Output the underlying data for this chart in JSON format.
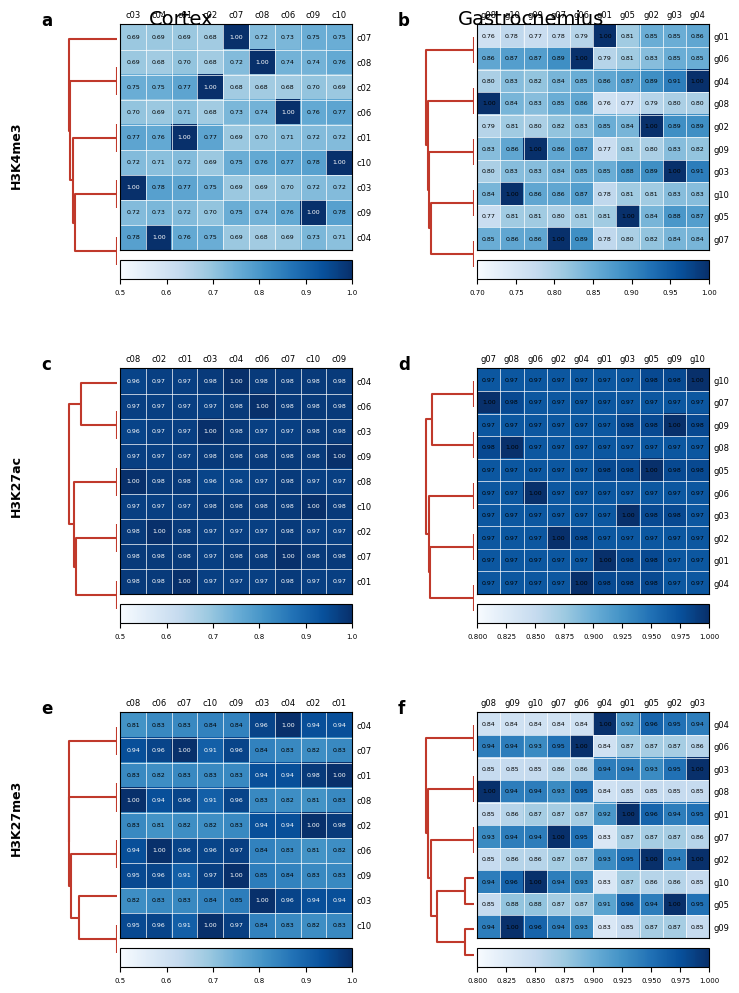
{
  "title_left": "Cortex",
  "title_right": "Gastrocnemius",
  "panels": [
    {
      "label": "a",
      "ylabel": "H3K4me3",
      "col_labels": [
        "c03",
        "c04",
        "c01",
        "c02",
        "c07",
        "c08",
        "c06",
        "c09",
        "c10"
      ],
      "row_labels": [
        "c10",
        "c09",
        "c06",
        "c08",
        "c07",
        "c02",
        "c01",
        "c04",
        "c03"
      ],
      "col_colors": [
        "blue",
        "blue",
        "blue",
        "blue",
        "magenta",
        "magenta",
        "magenta",
        "magenta",
        "magenta"
      ],
      "row_colors": [
        "magenta",
        "magenta",
        "magenta",
        "magenta",
        "magenta",
        "blue",
        "blue",
        "blue",
        "blue"
      ],
      "matrix": [
        [
          0.72,
          0.71,
          0.72,
          0.69,
          0.75,
          0.76,
          0.77,
          0.78,
          1.0
        ],
        [
          0.72,
          0.73,
          0.72,
          0.7,
          0.75,
          0.74,
          0.76,
          1.0,
          0.78
        ],
        [
          0.7,
          0.69,
          0.71,
          0.68,
          0.73,
          0.74,
          1.0,
          0.76,
          0.77
        ],
        [
          0.69,
          0.68,
          0.7,
          0.68,
          0.72,
          1.0,
          0.74,
          0.74,
          0.76
        ],
        [
          0.69,
          0.69,
          0.69,
          0.68,
          1.0,
          0.72,
          0.73,
          0.75,
          0.75
        ],
        [
          0.75,
          0.75,
          0.77,
          1.0,
          0.68,
          0.68,
          0.68,
          0.7,
          0.69
        ],
        [
          0.77,
          0.76,
          1.0,
          0.77,
          0.69,
          0.7,
          0.71,
          0.72,
          0.72
        ],
        [
          0.78,
          1.0,
          0.76,
          0.75,
          0.69,
          0.68,
          0.69,
          0.73,
          0.71
        ],
        [
          1.0,
          0.78,
          0.77,
          0.75,
          0.69,
          0.69,
          0.7,
          0.72,
          0.72
        ]
      ],
      "vmin": 0.5,
      "vmax": 1.0,
      "colorbar_ticks": [
        0.5,
        0.6,
        0.7,
        0.8,
        0.9,
        1.0
      ]
    },
    {
      "label": "b",
      "ylabel": "",
      "col_labels": [
        "g08",
        "g10",
        "g09",
        "g07",
        "g06",
        "g01",
        "g05",
        "g02",
        "g03",
        "g04"
      ],
      "row_labels": [
        "g04",
        "g03",
        "g02",
        "g05",
        "g01",
        "g06",
        "g07",
        "g09",
        "g10",
        "g08"
      ],
      "col_colors": [
        "magenta",
        "magenta",
        "magenta",
        "magenta",
        "magenta",
        "blue",
        "blue",
        "blue",
        "blue",
        "blue"
      ],
      "row_colors": [
        "blue",
        "blue",
        "blue",
        "blue",
        "blue",
        "magenta",
        "magenta",
        "magenta",
        "magenta",
        "magenta"
      ],
      "matrix": [
        [
          0.8,
          0.83,
          0.82,
          0.84,
          0.85,
          0.86,
          0.87,
          0.89,
          0.91,
          1.0
        ],
        [
          0.8,
          0.83,
          0.83,
          0.84,
          0.85,
          0.85,
          0.88,
          0.89,
          1.0,
          0.91
        ],
        [
          0.79,
          0.81,
          0.8,
          0.82,
          0.83,
          0.85,
          0.84,
          1.0,
          0.89,
          0.89
        ],
        [
          0.77,
          0.81,
          0.81,
          0.8,
          0.81,
          0.81,
          1.0,
          0.84,
          0.88,
          0.87
        ],
        [
          0.76,
          0.78,
          0.77,
          0.78,
          0.79,
          1.0,
          0.81,
          0.85,
          0.85,
          0.86
        ],
        [
          0.86,
          0.87,
          0.87,
          0.89,
          1.0,
          0.79,
          0.81,
          0.83,
          0.85,
          0.85
        ],
        [
          0.85,
          0.86,
          0.86,
          1.0,
          0.89,
          0.78,
          0.8,
          0.82,
          0.84,
          0.84
        ],
        [
          0.83,
          0.86,
          1.0,
          0.86,
          0.87,
          0.77,
          0.81,
          0.8,
          0.83,
          0.82
        ],
        [
          0.84,
          1.0,
          0.86,
          0.86,
          0.87,
          0.78,
          0.81,
          0.81,
          0.83,
          0.83
        ],
        [
          1.0,
          0.84,
          0.83,
          0.85,
          0.86,
          0.76,
          0.77,
          0.79,
          0.8,
          0.8
        ]
      ],
      "vmin": 0.7,
      "vmax": 1.0,
      "colorbar_ticks": [
        0.7,
        0.75,
        0.8,
        0.85,
        0.9,
        0.95,
        1.0
      ]
    },
    {
      "label": "c",
      "ylabel": "H3K27ac",
      "col_labels": [
        "c08",
        "c02",
        "c01",
        "c03",
        "c04",
        "c06",
        "c07",
        "c10",
        "c09"
      ],
      "row_labels": [
        "c09",
        "c10",
        "c07",
        "c06",
        "c04",
        "c03",
        "c01",
        "c02",
        "c08"
      ],
      "col_colors": [
        "magenta",
        "blue",
        "blue",
        "blue",
        "blue",
        "magenta",
        "magenta",
        "magenta",
        "magenta"
      ],
      "row_colors": [
        "magenta",
        "magenta",
        "magenta",
        "magenta",
        "blue",
        "blue",
        "blue",
        "blue",
        "magenta"
      ],
      "matrix": [
        [
          0.97,
          0.97,
          0.97,
          0.98,
          0.98,
          0.98,
          0.98,
          0.98,
          1.0
        ],
        [
          0.97,
          0.97,
          0.97,
          0.98,
          0.98,
          0.98,
          0.98,
          1.0,
          0.98
        ],
        [
          0.98,
          0.98,
          0.98,
          0.97,
          0.98,
          0.98,
          1.0,
          0.98,
          0.98
        ],
        [
          0.97,
          0.97,
          0.97,
          0.97,
          0.98,
          1.0,
          0.98,
          0.98,
          0.98
        ],
        [
          0.96,
          0.97,
          0.97,
          0.98,
          1.0,
          0.98,
          0.98,
          0.98,
          0.98
        ],
        [
          0.96,
          0.97,
          0.97,
          1.0,
          0.98,
          0.97,
          0.97,
          0.98,
          0.98
        ],
        [
          0.98,
          0.98,
          1.0,
          0.97,
          0.97,
          0.97,
          0.98,
          0.97,
          0.97
        ],
        [
          0.98,
          1.0,
          0.98,
          0.97,
          0.97,
          0.97,
          0.98,
          0.97,
          0.97
        ],
        [
          1.0,
          0.98,
          0.98,
          0.96,
          0.96,
          0.97,
          0.98,
          0.97,
          0.97
        ]
      ],
      "vmin": 0.5,
      "vmax": 1.0,
      "colorbar_ticks": [
        0.5,
        0.6,
        0.7,
        0.8,
        0.9,
        1.0
      ]
    },
    {
      "label": "d",
      "ylabel": "",
      "col_labels": [
        "g07",
        "g08",
        "g06",
        "g02",
        "g04",
        "g01",
        "g03",
        "g05",
        "g09",
        "g10"
      ],
      "row_labels": [
        "g10",
        "g09",
        "g05",
        "g03",
        "g01",
        "g04",
        "g02",
        "g06",
        "g08",
        "g07"
      ],
      "col_colors": [
        "magenta",
        "magenta",
        "magenta",
        "blue",
        "blue",
        "blue",
        "blue",
        "blue",
        "magenta",
        "magenta"
      ],
      "row_colors": [
        "magenta",
        "magenta",
        "blue",
        "blue",
        "blue",
        "blue",
        "blue",
        "magenta",
        "magenta",
        "magenta"
      ],
      "matrix": [
        [
          0.97,
          0.97,
          0.97,
          0.97,
          0.97,
          0.97,
          0.97,
          0.98,
          0.98,
          1.0
        ],
        [
          0.97,
          0.97,
          0.97,
          0.97,
          0.97,
          0.97,
          0.98,
          0.98,
          1.0,
          0.98
        ],
        [
          0.97,
          0.97,
          0.97,
          0.97,
          0.97,
          0.98,
          0.98,
          1.0,
          0.98,
          0.98
        ],
        [
          0.97,
          0.97,
          0.97,
          0.97,
          0.97,
          0.97,
          1.0,
          0.98,
          0.98,
          0.97
        ],
        [
          0.97,
          0.97,
          0.97,
          0.97,
          0.97,
          1.0,
          0.98,
          0.98,
          0.97,
          0.97
        ],
        [
          0.97,
          0.97,
          0.97,
          0.97,
          1.0,
          0.98,
          0.98,
          0.98,
          0.97,
          0.97
        ],
        [
          0.97,
          0.97,
          0.97,
          1.0,
          0.98,
          0.97,
          0.97,
          0.97,
          0.97,
          0.97
        ],
        [
          0.97,
          0.97,
          1.0,
          0.97,
          0.97,
          0.97,
          0.97,
          0.97,
          0.97,
          0.97
        ],
        [
          0.98,
          1.0,
          0.97,
          0.97,
          0.97,
          0.97,
          0.97,
          0.97,
          0.97,
          0.97
        ],
        [
          1.0,
          0.98,
          0.97,
          0.97,
          0.97,
          0.97,
          0.97,
          0.97,
          0.97,
          0.97
        ]
      ],
      "vmin": 0.8,
      "vmax": 1.0,
      "colorbar_ticks": [
        0.8,
        0.825,
        0.85,
        0.875,
        0.9,
        0.925,
        0.95,
        0.975,
        1.0
      ]
    },
    {
      "label": "e",
      "ylabel": "H3K27me3",
      "col_labels": [
        "c08",
        "c06",
        "c07",
        "c10",
        "c09",
        "c03",
        "c04",
        "c02",
        "c01"
      ],
      "row_labels": [
        "c01",
        "c02",
        "c04",
        "c03",
        "c09",
        "c10",
        "c07",
        "c06",
        "c08"
      ],
      "col_colors": [
        "magenta",
        "magenta",
        "magenta",
        "magenta",
        "magenta",
        "blue",
        "blue",
        "blue",
        "blue"
      ],
      "row_colors": [
        "blue",
        "blue",
        "blue",
        "blue",
        "magenta",
        "magenta",
        "magenta",
        "magenta",
        "magenta"
      ],
      "matrix": [
        [
          0.83,
          0.82,
          0.83,
          0.83,
          0.83,
          0.94,
          0.94,
          0.98,
          1.0
        ],
        [
          0.83,
          0.81,
          0.82,
          0.82,
          0.83,
          0.94,
          0.94,
          1.0,
          0.98
        ],
        [
          0.81,
          0.83,
          0.83,
          0.84,
          0.84,
          0.96,
          1.0,
          0.94,
          0.94
        ],
        [
          0.82,
          0.83,
          0.83,
          0.84,
          0.85,
          1.0,
          0.96,
          0.94,
          0.94
        ],
        [
          0.95,
          0.96,
          0.91,
          0.97,
          1.0,
          0.85,
          0.84,
          0.83,
          0.83
        ],
        [
          0.95,
          0.96,
          0.91,
          1.0,
          0.97,
          0.84,
          0.83,
          0.82,
          0.83
        ],
        [
          0.94,
          0.96,
          1.0,
          0.91,
          0.96,
          0.84,
          0.83,
          0.82,
          0.83
        ],
        [
          0.94,
          1.0,
          0.96,
          0.96,
          0.97,
          0.84,
          0.83,
          0.81,
          0.82
        ],
        [
          1.0,
          0.94,
          0.96,
          0.91,
          0.96,
          0.83,
          0.82,
          0.81,
          0.83
        ]
      ],
      "vmin": 0.5,
      "vmax": 1.0,
      "colorbar_ticks": [
        0.5,
        0.6,
        0.7,
        0.8,
        0.9,
        1.0
      ]
    },
    {
      "label": "f",
      "ylabel": "",
      "col_labels": [
        "g08",
        "g09",
        "g10",
        "g07",
        "g06",
        "g04",
        "g01",
        "g05",
        "g02",
        "g03"
      ],
      "row_labels": [
        "g03",
        "g02",
        "g05",
        "g01",
        "g04",
        "g06",
        "g07",
        "g10",
        "g09",
        "g08"
      ],
      "col_colors": [
        "magenta",
        "magenta",
        "magenta",
        "magenta",
        "magenta",
        "blue",
        "blue",
        "blue",
        "blue",
        "blue"
      ],
      "row_colors": [
        "blue",
        "blue",
        "blue",
        "blue",
        "blue",
        "magenta",
        "magenta",
        "magenta",
        "magenta",
        "magenta"
      ],
      "matrix": [
        [
          0.85,
          0.85,
          0.85,
          0.86,
          0.86,
          0.94,
          0.94,
          0.93,
          0.95,
          1.0
        ],
        [
          0.85,
          0.86,
          0.86,
          0.87,
          0.87,
          0.93,
          0.95,
          1.0,
          0.94,
          1.0
        ],
        [
          0.85,
          0.88,
          0.88,
          0.87,
          0.87,
          0.91,
          0.96,
          0.94,
          1.0,
          0.95
        ],
        [
          0.85,
          0.86,
          0.87,
          0.87,
          0.87,
          0.92,
          1.0,
          0.96,
          0.94,
          0.95
        ],
        [
          0.84,
          0.84,
          0.84,
          0.84,
          0.84,
          1.0,
          0.92,
          0.96,
          0.95,
          0.94
        ],
        [
          0.94,
          0.94,
          0.93,
          0.95,
          1.0,
          0.84,
          0.87,
          0.87,
          0.87,
          0.86
        ],
        [
          0.93,
          0.94,
          0.94,
          1.0,
          0.95,
          0.83,
          0.87,
          0.87,
          0.87,
          0.86
        ],
        [
          0.94,
          0.96,
          1.0,
          0.94,
          0.93,
          0.83,
          0.87,
          0.86,
          0.86,
          0.85
        ],
        [
          0.94,
          1.0,
          0.96,
          0.94,
          0.93,
          0.83,
          0.85,
          0.87,
          0.87,
          0.85
        ],
        [
          1.0,
          0.94,
          0.94,
          0.93,
          0.95,
          0.84,
          0.85,
          0.85,
          0.85,
          0.85
        ]
      ],
      "vmin": 0.8,
      "vmax": 1.0,
      "colorbar_ticks": [
        0.8,
        0.825,
        0.85,
        0.875,
        0.9,
        0.925,
        0.95,
        0.975,
        1.0
      ]
    }
  ],
  "dendro_color": "#c0392b",
  "blue_color": "#0000cc",
  "pink_color": "#ff44cc",
  "cmap": "Blues"
}
